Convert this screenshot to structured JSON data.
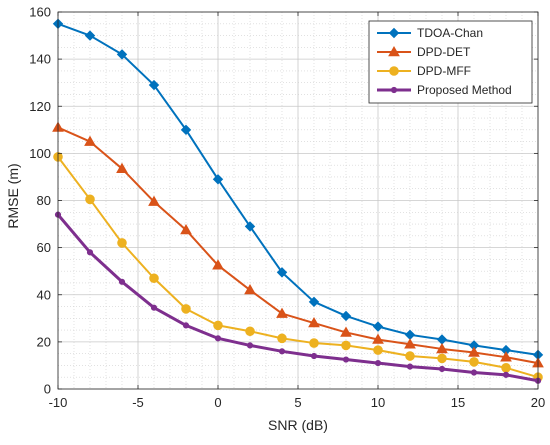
{
  "chart_data": {
    "type": "line",
    "title": "",
    "xlabel": "SNR (dB)",
    "ylabel": "RMSE (m)",
    "xlim": [
      -10,
      20
    ],
    "ylim": [
      0,
      160
    ],
    "xticks": [
      -10,
      -5,
      0,
      5,
      10,
      15,
      20
    ],
    "yticks": [
      0,
      20,
      40,
      60,
      80,
      100,
      120,
      140,
      160
    ],
    "grid": true,
    "minor_grid": true,
    "legend_position": "top-right",
    "x": [
      -10,
      -8,
      -6,
      -4,
      -2,
      0,
      2,
      4,
      6,
      8,
      10,
      12,
      14,
      16,
      18,
      20
    ],
    "series": [
      {
        "name": "TDOA-Chan",
        "color": "#0072BD",
        "marker": "diamond",
        "values": [
          155,
          150,
          142,
          129,
          110,
          89,
          69,
          49.5,
          37,
          31,
          26.5,
          23,
          21,
          18.5,
          16.5,
          14.5
        ]
      },
      {
        "name": "DPD-DET",
        "color": "#D95319",
        "marker": "triangle",
        "values": [
          111,
          105,
          93.5,
          79.5,
          67.5,
          52.5,
          42,
          32,
          28,
          24,
          21,
          19,
          17,
          15.5,
          13.5,
          11
        ]
      },
      {
        "name": "DPD-MFF",
        "color": "#EDB120",
        "marker": "circle",
        "values": [
          98.5,
          80.5,
          62,
          47,
          34,
          27,
          24.5,
          21.5,
          19.5,
          18.5,
          16.5,
          14,
          13,
          11.5,
          9,
          5
        ]
      },
      {
        "name": "Proposed Method",
        "color": "#7E2F8E",
        "marker": "dot",
        "values": [
          74,
          58,
          45.5,
          34.5,
          27,
          21.5,
          18.5,
          16,
          14,
          12.5,
          11,
          9.5,
          8.5,
          7,
          6,
          3.5
        ]
      }
    ]
  }
}
